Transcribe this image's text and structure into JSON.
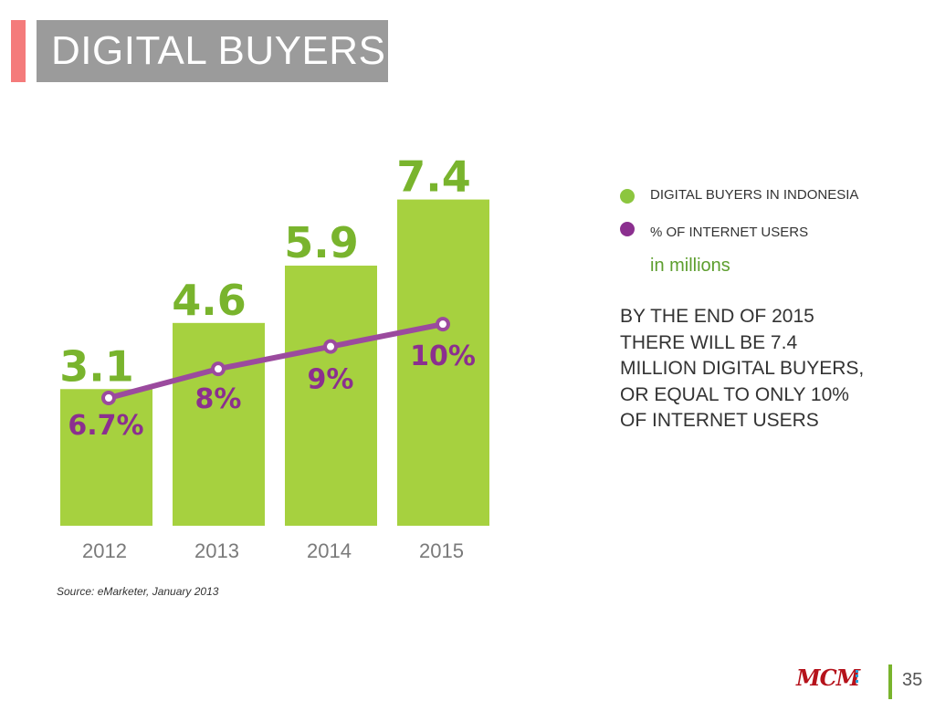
{
  "slide": {
    "title": "DIGITAL BUYERS",
    "source": "Source: eMarketer, January 2013",
    "page_number": "35",
    "units_note": "in millions",
    "callout_lines": [
      "BY THE END OF 2015",
      "THERE WILL BE 7.4",
      "MILLION DIGITAL BUYERS,",
      "OR EQUAL TO ONLY 10%",
      "OF INTERNET USERS"
    ],
    "logo_text": "MCM"
  },
  "colors": {
    "accent_red": "#f47b7b",
    "title_bg": "#9b9b9b",
    "bar_green": "#a6d13f",
    "value_green": "#79b42d",
    "line_purple": "#9b4a9e",
    "pct_purple": "#8b2f8f"
  },
  "chart_data": {
    "type": "bar",
    "categories": [
      "2012",
      "2013",
      "2014",
      "2015"
    ],
    "series": [
      {
        "name": "DIGITAL BUYERS IN INDONESIA",
        "type": "bar",
        "values": [
          3.1,
          4.6,
          5.9,
          7.4
        ],
        "labels": [
          "3.1",
          "4.6",
          "5.9",
          "7.4"
        ],
        "color": "#a6d13f"
      },
      {
        "name": "% OF INTERNET USERS",
        "type": "line",
        "values": [
          6.7,
          8,
          9,
          10
        ],
        "labels": [
          "6.7%",
          "8%",
          "9%",
          "10%"
        ],
        "color": "#9b4a9e"
      }
    ],
    "legend_position": "right",
    "grid": false
  }
}
